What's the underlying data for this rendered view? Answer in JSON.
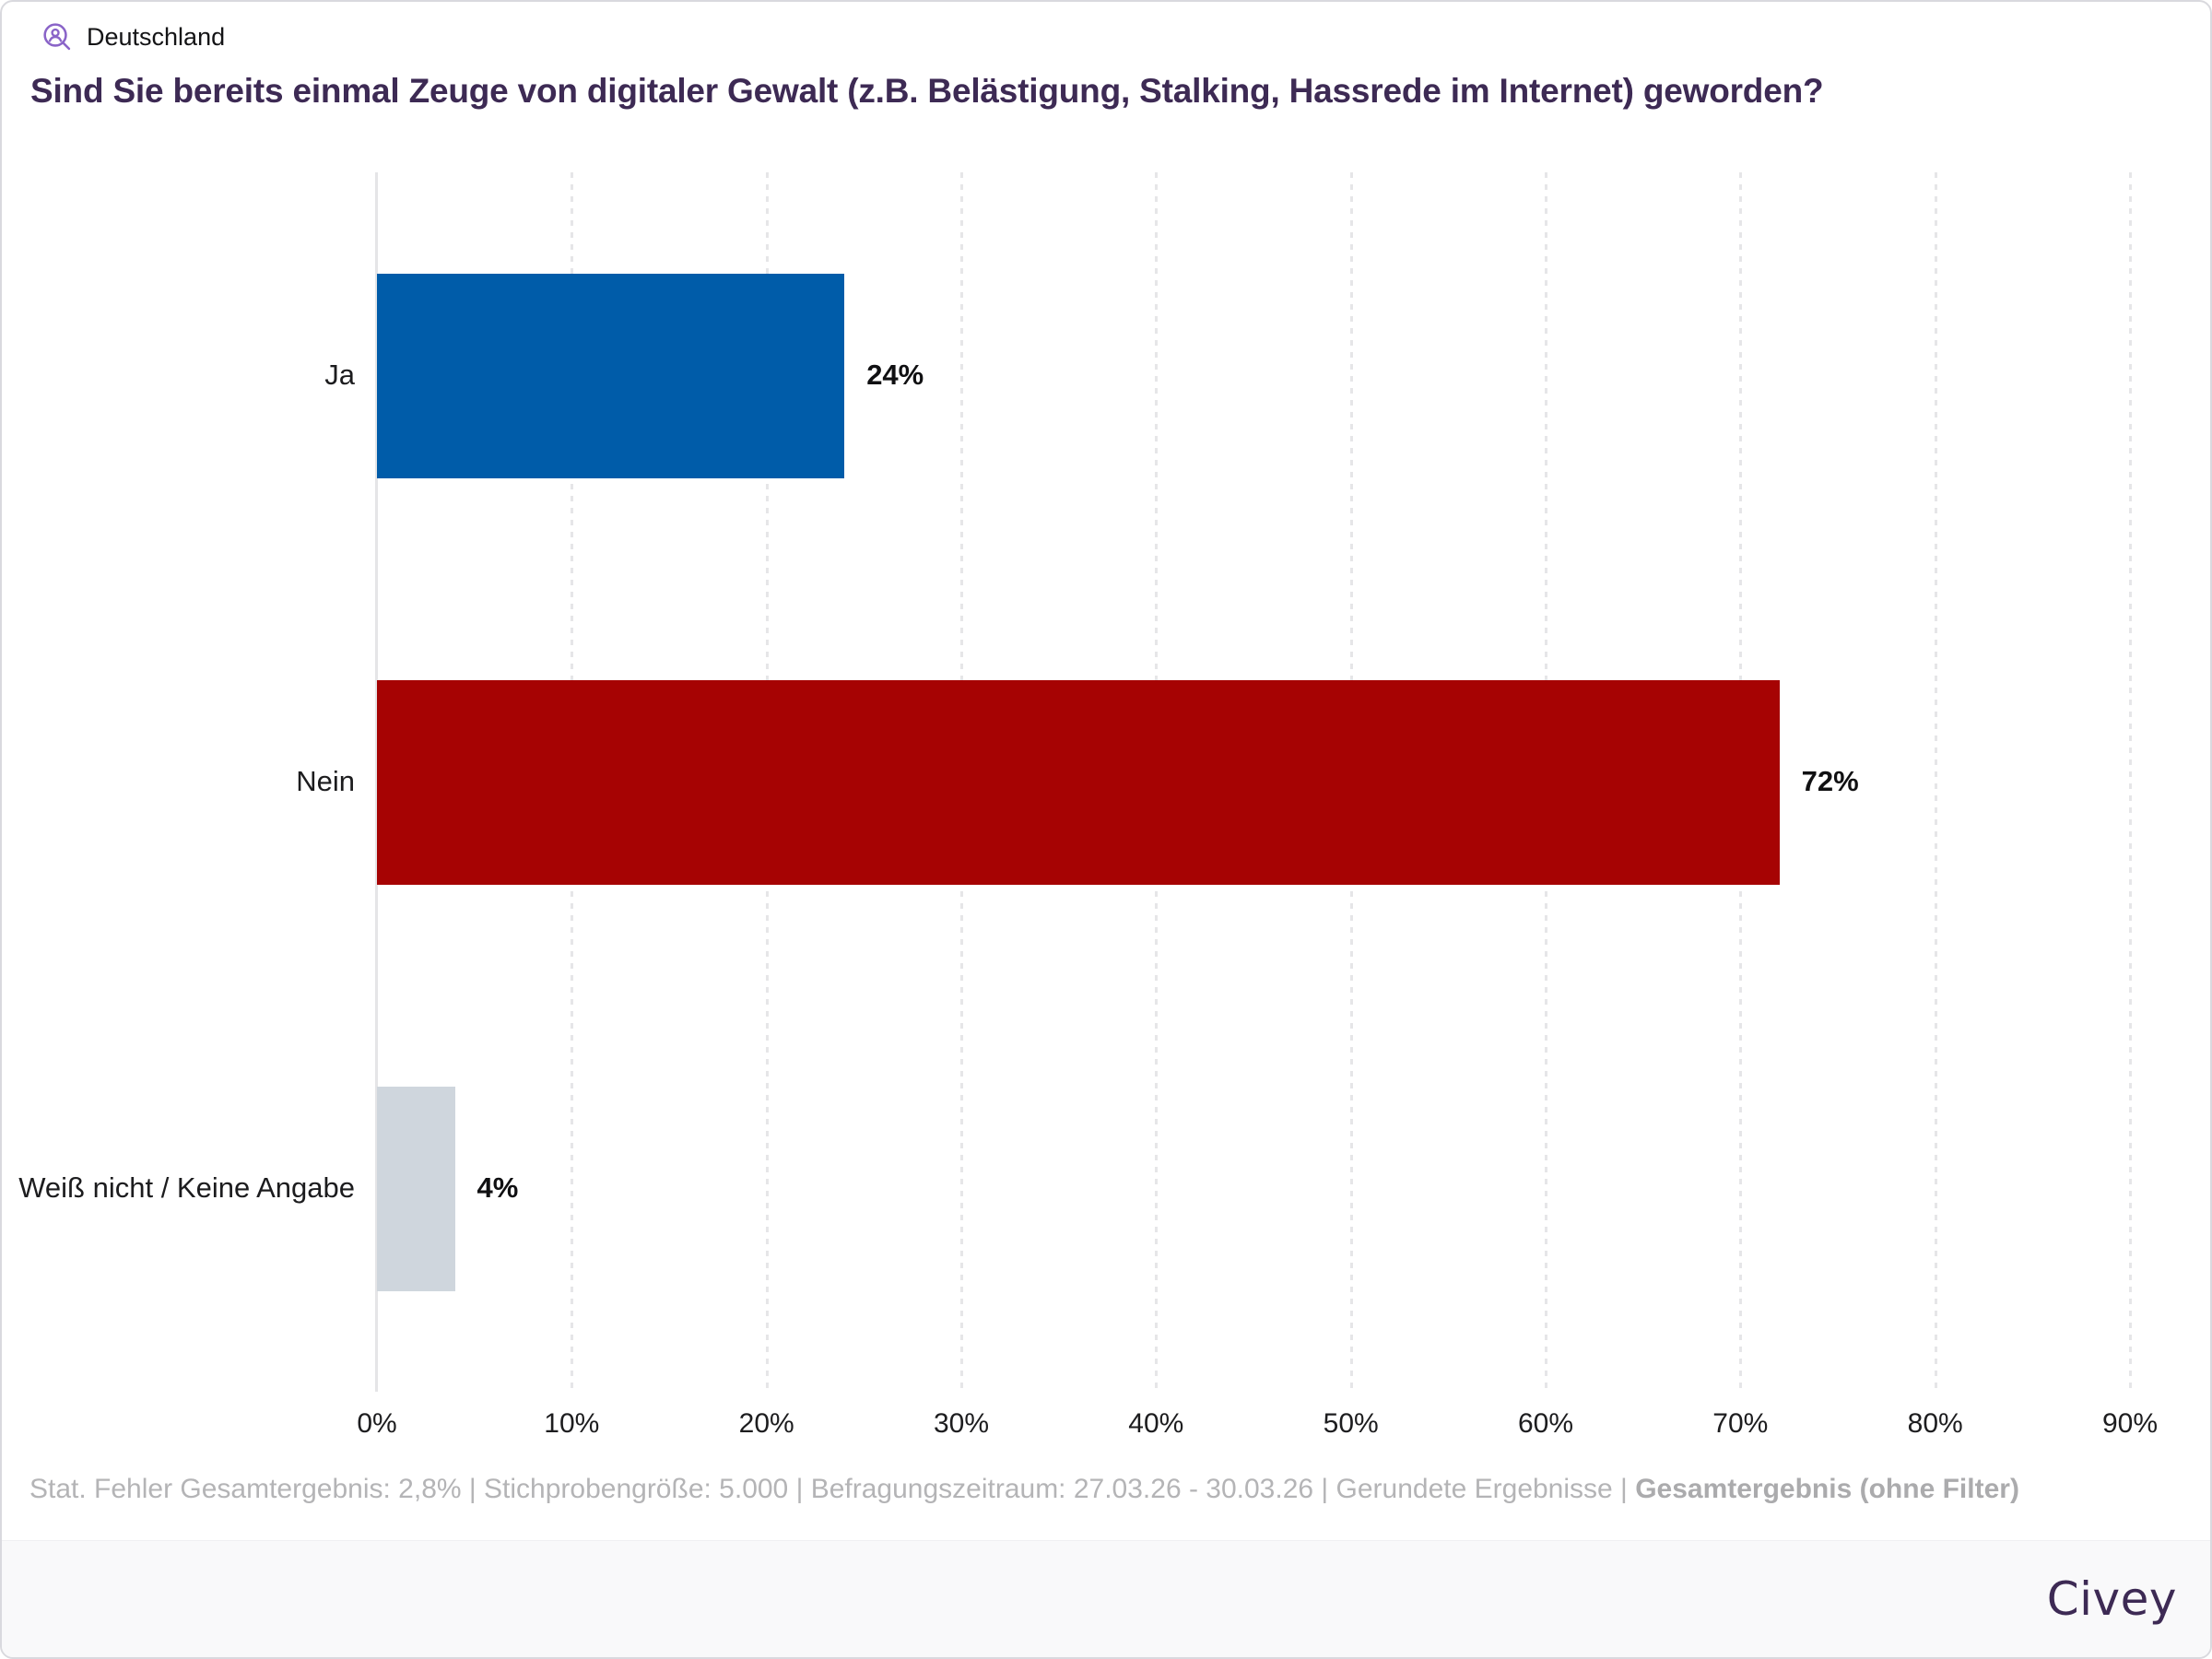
{
  "header": {
    "region": "Deutschland",
    "title": "Sind Sie bereits einmal Zeuge von digitaler Gewalt (z.B. Belästigung, Stalking, Hassrede im Internet) geworden?"
  },
  "chart_data": {
    "type": "bar",
    "orientation": "horizontal",
    "title": "Sind Sie bereits einmal Zeuge von digitaler Gewalt (z.B. Belästigung, Stalking, Hassrede im Internet) geworden?",
    "categories": [
      "Ja",
      "Nein",
      "Weiß nicht / Keine Angabe"
    ],
    "values": [
      24,
      72,
      4
    ],
    "value_labels": [
      "24%",
      "72%",
      "4%"
    ],
    "bar_colors": [
      "#005ca9",
      "#a60303",
      "#cfd6dd"
    ],
    "xlim": [
      0,
      90
    ],
    "x_ticks": [
      0,
      10,
      20,
      30,
      40,
      50,
      60,
      70,
      80,
      90
    ],
    "x_tick_labels": [
      "0%",
      "10%",
      "20%",
      "30%",
      "40%",
      "50%",
      "60%",
      "70%",
      "80%",
      "90%"
    ],
    "grid": "vertical-dotted",
    "legend": "none"
  },
  "footer": {
    "meta_regular": "Stat. Fehler Gesamtergebnis: 2,8% | Stichprobengröße: 5.000 | Befragungszeitraum: 27.03.26 - 30.03.26 | Gerundete Ergebnisse | ",
    "meta_bold": "Gesamtergebnis (ohne Filter)",
    "brand": "Civey"
  },
  "colors": {
    "accent_icon": "#8a64c8",
    "title_text": "#3d2a54",
    "brand_text": "#3d2a54",
    "bar_blue": "#005ca9",
    "bar_red": "#a60303",
    "bar_gray": "#cfd6dd",
    "meta_text": "#b4b4b6",
    "gridline": "#e6e6e8"
  }
}
